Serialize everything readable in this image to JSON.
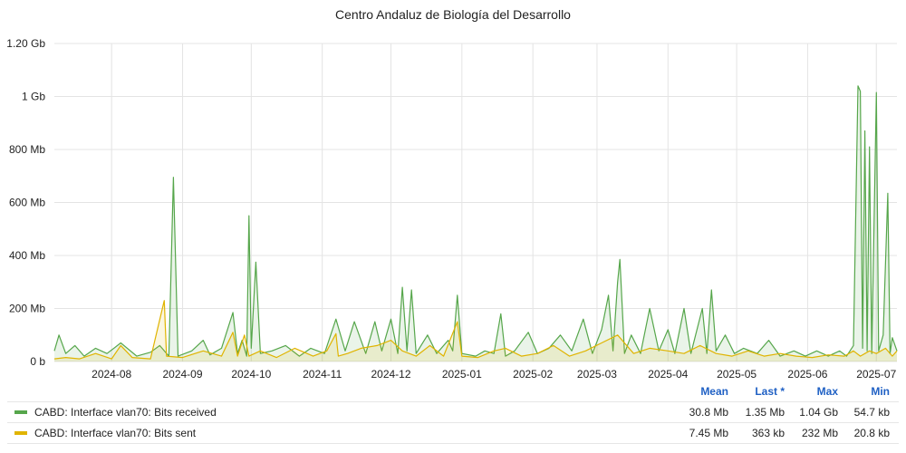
{
  "chart_data": {
    "type": "area",
    "title": "Centro Andaluz de Biología del Desarrollo",
    "y_ticks": [
      "0 b",
      "200 Mb",
      "400 Mb",
      "600 Mb",
      "800 Mb",
      "1 Gb",
      "1.20 Gb"
    ],
    "y_tick_values_mb": [
      0,
      200,
      400,
      600,
      800,
      1000,
      1200
    ],
    "ylim_mb": [
      0,
      1200
    ],
    "x_ticks": [
      "2024-08",
      "2024-09",
      "2024-10",
      "2024-11",
      "2024-12",
      "2025-01",
      "2025-02",
      "2025-03",
      "2025-04",
      "2025-05",
      "2025-06",
      "2025-07"
    ],
    "x_range": [
      "2024-07-07",
      "2025-07-10"
    ],
    "grid": true,
    "series": [
      {
        "name": "CABD: Interface vlan70: Bits received",
        "color": "#56a64b",
        "points": [
          [
            "2024-07-07",
            40
          ],
          [
            "2024-07-09",
            100
          ],
          [
            "2024-07-12",
            30
          ],
          [
            "2024-07-16",
            60
          ],
          [
            "2024-07-20",
            20
          ],
          [
            "2024-07-25",
            50
          ],
          [
            "2024-07-30",
            30
          ],
          [
            "2024-08-05",
            70
          ],
          [
            "2024-08-12",
            20
          ],
          [
            "2024-08-18",
            35
          ],
          [
            "2024-08-22",
            60
          ],
          [
            "2024-08-26",
            20
          ],
          [
            "2024-08-28",
            695
          ],
          [
            "2024-08-30",
            20
          ],
          [
            "2024-09-05",
            40
          ],
          [
            "2024-09-10",
            80
          ],
          [
            "2024-09-13",
            25
          ],
          [
            "2024-09-18",
            50
          ],
          [
            "2024-09-23",
            185
          ],
          [
            "2024-09-25",
            30
          ],
          [
            "2024-09-27",
            80
          ],
          [
            "2024-09-29",
            20
          ],
          [
            "2024-09-30",
            550
          ],
          [
            "2024-10-01",
            50
          ],
          [
            "2024-10-03",
            375
          ],
          [
            "2024-10-05",
            30
          ],
          [
            "2024-10-10",
            40
          ],
          [
            "2024-10-16",
            60
          ],
          [
            "2024-10-22",
            20
          ],
          [
            "2024-10-27",
            50
          ],
          [
            "2024-11-02",
            30
          ],
          [
            "2024-11-07",
            160
          ],
          [
            "2024-11-11",
            40
          ],
          [
            "2024-11-15",
            150
          ],
          [
            "2024-11-20",
            30
          ],
          [
            "2024-11-24",
            150
          ],
          [
            "2024-11-27",
            40
          ],
          [
            "2024-12-01",
            160
          ],
          [
            "2024-12-04",
            30
          ],
          [
            "2024-12-06",
            280
          ],
          [
            "2024-12-08",
            40
          ],
          [
            "2024-12-10",
            270
          ],
          [
            "2024-12-12",
            30
          ],
          [
            "2024-12-17",
            100
          ],
          [
            "2024-12-21",
            30
          ],
          [
            "2024-12-26",
            80
          ],
          [
            "2024-12-28",
            40
          ],
          [
            "2024-12-30",
            250
          ],
          [
            "2025-01-01",
            30
          ],
          [
            "2025-01-07",
            20
          ],
          [
            "2025-01-11",
            40
          ],
          [
            "2025-01-15",
            30
          ],
          [
            "2025-01-18",
            180
          ],
          [
            "2025-01-20",
            20
          ],
          [
            "2025-01-24",
            40
          ],
          [
            "2025-01-30",
            110
          ],
          [
            "2025-02-03",
            30
          ],
          [
            "2025-02-08",
            50
          ],
          [
            "2025-02-13",
            100
          ],
          [
            "2025-02-18",
            40
          ],
          [
            "2025-02-23",
            160
          ],
          [
            "2025-02-27",
            30
          ],
          [
            "2025-03-03",
            120
          ],
          [
            "2025-03-06",
            250
          ],
          [
            "2025-03-08",
            40
          ],
          [
            "2025-03-10",
            300
          ],
          [
            "2025-03-11",
            385
          ],
          [
            "2025-03-13",
            30
          ],
          [
            "2025-03-16",
            100
          ],
          [
            "2025-03-20",
            30
          ],
          [
            "2025-03-24",
            200
          ],
          [
            "2025-03-28",
            40
          ],
          [
            "2025-04-01",
            120
          ],
          [
            "2025-04-04",
            30
          ],
          [
            "2025-04-08",
            200
          ],
          [
            "2025-04-11",
            30
          ],
          [
            "2025-04-16",
            200
          ],
          [
            "2025-04-18",
            30
          ],
          [
            "2025-04-20",
            270
          ],
          [
            "2025-04-22",
            40
          ],
          [
            "2025-04-26",
            100
          ],
          [
            "2025-04-30",
            30
          ],
          [
            "2025-05-04",
            50
          ],
          [
            "2025-05-10",
            30
          ],
          [
            "2025-05-15",
            80
          ],
          [
            "2025-05-20",
            20
          ],
          [
            "2025-05-26",
            40
          ],
          [
            "2025-05-31",
            20
          ],
          [
            "2025-06-05",
            40
          ],
          [
            "2025-06-10",
            20
          ],
          [
            "2025-06-15",
            40
          ],
          [
            "2025-06-18",
            20
          ],
          [
            "2025-06-21",
            60
          ],
          [
            "2025-06-23",
            1040
          ],
          [
            "2025-06-24",
            1020
          ],
          [
            "2025-06-25",
            50
          ],
          [
            "2025-06-26",
            870
          ],
          [
            "2025-06-27",
            40
          ],
          [
            "2025-06-28",
            810
          ],
          [
            "2025-06-29",
            30
          ],
          [
            "2025-07-01",
            1015
          ],
          [
            "2025-07-02",
            40
          ],
          [
            "2025-07-04",
            100
          ],
          [
            "2025-07-06",
            635
          ],
          [
            "2025-07-07",
            30
          ],
          [
            "2025-07-08",
            90
          ],
          [
            "2025-07-10",
            40
          ]
        ]
      },
      {
        "name": "CABD: Interface vlan70: Bits sent",
        "color": "#e0b400",
        "points": [
          [
            "2024-07-07",
            10
          ],
          [
            "2024-07-12",
            15
          ],
          [
            "2024-07-18",
            10
          ],
          [
            "2024-07-25",
            30
          ],
          [
            "2024-08-01",
            10
          ],
          [
            "2024-08-05",
            60
          ],
          [
            "2024-08-10",
            15
          ],
          [
            "2024-08-18",
            10
          ],
          [
            "2024-08-24",
            230
          ],
          [
            "2024-08-25",
            20
          ],
          [
            "2024-09-01",
            15
          ],
          [
            "2024-09-10",
            40
          ],
          [
            "2024-09-18",
            20
          ],
          [
            "2024-09-23",
            110
          ],
          [
            "2024-09-25",
            20
          ],
          [
            "2024-09-28",
            100
          ],
          [
            "2024-09-30",
            20
          ],
          [
            "2024-10-05",
            40
          ],
          [
            "2024-10-12",
            15
          ],
          [
            "2024-10-20",
            50
          ],
          [
            "2024-10-28",
            20
          ],
          [
            "2024-11-03",
            40
          ],
          [
            "2024-11-07",
            105
          ],
          [
            "2024-11-08",
            20
          ],
          [
            "2024-11-12",
            30
          ],
          [
            "2024-11-18",
            50
          ],
          [
            "2024-11-25",
            60
          ],
          [
            "2024-12-01",
            80
          ],
          [
            "2024-12-06",
            40
          ],
          [
            "2024-12-12",
            20
          ],
          [
            "2024-12-18",
            60
          ],
          [
            "2024-12-24",
            20
          ],
          [
            "2024-12-30",
            150
          ],
          [
            "2025-01-01",
            20
          ],
          [
            "2025-01-08",
            15
          ],
          [
            "2025-01-15",
            40
          ],
          [
            "2025-01-20",
            50
          ],
          [
            "2025-01-27",
            20
          ],
          [
            "2025-02-03",
            30
          ],
          [
            "2025-02-10",
            60
          ],
          [
            "2025-02-17",
            20
          ],
          [
            "2025-02-24",
            40
          ],
          [
            "2025-03-03",
            70
          ],
          [
            "2025-03-10",
            100
          ],
          [
            "2025-03-17",
            30
          ],
          [
            "2025-03-24",
            50
          ],
          [
            "2025-04-01",
            40
          ],
          [
            "2025-04-08",
            30
          ],
          [
            "2025-04-15",
            60
          ],
          [
            "2025-04-22",
            30
          ],
          [
            "2025-04-29",
            20
          ],
          [
            "2025-05-06",
            40
          ],
          [
            "2025-05-13",
            20
          ],
          [
            "2025-05-20",
            30
          ],
          [
            "2025-05-27",
            20
          ],
          [
            "2025-06-03",
            15
          ],
          [
            "2025-06-10",
            25
          ],
          [
            "2025-06-17",
            20
          ],
          [
            "2025-06-21",
            40
          ],
          [
            "2025-06-24",
            20
          ],
          [
            "2025-06-28",
            40
          ],
          [
            "2025-07-01",
            30
          ],
          [
            "2025-07-05",
            50
          ],
          [
            "2025-07-08",
            20
          ],
          [
            "2025-07-10",
            40
          ]
        ]
      }
    ],
    "legend": {
      "headers": {
        "mean": "Mean",
        "last": "Last *",
        "max": "Max",
        "min": "Min"
      },
      "rows": [
        {
          "name": "CABD: Interface vlan70: Bits received",
          "color": "#56a64b",
          "mean": "30.8 Mb",
          "last": "1.35 Mb",
          "max": "1.04 Gb",
          "min": "54.7 kb"
        },
        {
          "name": "CABD: Interface vlan70: Bits sent",
          "color": "#e0b400",
          "mean": "7.45 Mb",
          "last": "363 kb",
          "max": "232 Mb",
          "min": "20.8 kb"
        }
      ]
    }
  }
}
